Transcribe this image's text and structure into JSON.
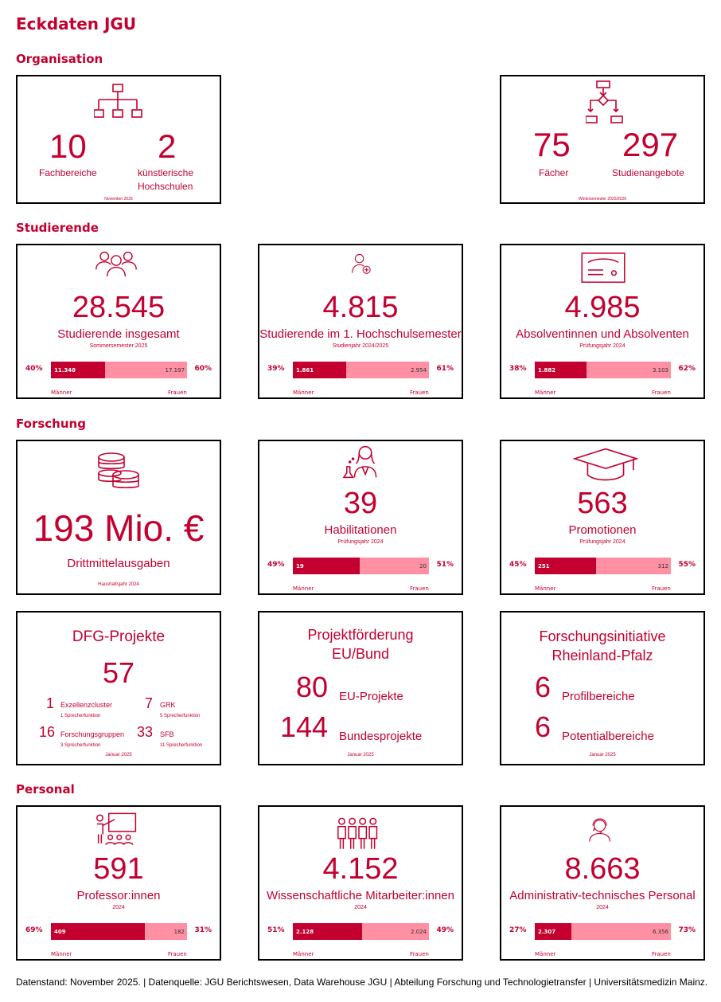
{
  "title": "Eckdaten JGU",
  "sections": {
    "organisation": "Organisation",
    "studierende": "Studierende",
    "forschung": "Forschung",
    "personal": "Personal"
  },
  "org": {
    "card1": {
      "v1": "10",
      "l1": "Fachbereiche",
      "v2": "2",
      "l2a": "künstlerische",
      "l2b": "Hochschulen",
      "date": "November 2025",
      "icon": "org-chart-icon"
    },
    "card2": {
      "v1": "75",
      "l1": "Fächer",
      "v2": "297",
      "l2": "Studienangebote",
      "date": "Wintersemester 2025/2026",
      "icon": "flowchart-icon"
    }
  },
  "gender_cards": [
    {
      "id": "studierende-insgesamt",
      "icon": "group-icon",
      "value": "28.545",
      "label": "Studierende insgesamt",
      "sub": "Sommersemester 2025",
      "men": "11.348",
      "women": "17.197",
      "men_pct": "40%",
      "women_pct": "60%",
      "men_fraction": 0.4
    },
    {
      "id": "erstsemester",
      "icon": "user-add-icon",
      "value": "4.815",
      "label": "Studierende im 1. Hochschulsemester",
      "sub": "Studienjahr 2024/2025",
      "men": "1.861",
      "women": "2.954",
      "men_pct": "39%",
      "women_pct": "61%",
      "men_fraction": 0.39
    },
    {
      "id": "absolventen",
      "icon": "certificate-icon",
      "value": "4.985",
      "label": "Absolventinnen und Absolventen",
      "sub": "Prüfungsjahr 2024",
      "men": "1.882",
      "women": "3.103",
      "men_pct": "38%",
      "women_pct": "62%",
      "men_fraction": 0.38
    },
    {
      "id": "habilitationen",
      "icon": "scientist-icon",
      "value": "39",
      "label": "Habilitationen",
      "sub": "Prüfungsjahr 2024",
      "men": "19",
      "women": "20",
      "men_pct": "49%",
      "women_pct": "51%",
      "men_fraction": 0.49
    },
    {
      "id": "promotionen",
      "icon": "graduation-cap-icon",
      "value": "563",
      "label": "Promotionen",
      "sub": "Prüfungsjahr 2024",
      "men": "251",
      "women": "312",
      "men_pct": "45%",
      "women_pct": "55%",
      "men_fraction": 0.45
    },
    {
      "id": "professoren",
      "icon": "teacher-icon",
      "value": "591",
      "label": "Professor:innen",
      "sub": "2024",
      "men": "409",
      "women": "182",
      "men_pct": "69%",
      "women_pct": "31%",
      "men_fraction": 0.69
    },
    {
      "id": "wiss-mitarbeiter",
      "icon": "staff-group-icon",
      "value": "4.152",
      "label": "Wissenschaftliche Mitarbeiter:innen",
      "sub": "2024",
      "men": "2.128",
      "women": "2.024",
      "men_pct": "51%",
      "women_pct": "49%",
      "men_fraction": 0.51
    },
    {
      "id": "admin-personal",
      "icon": "headset-icon",
      "value": "8.663",
      "label": "Administrativ-technisches Personal",
      "sub": "2024",
      "men": "2.307",
      "women": "6.356",
      "men_pct": "27%",
      "women_pct": "73%",
      "men_fraction": 0.27
    }
  ],
  "gender_labels": {
    "men": "Männer",
    "women": "Frauen"
  },
  "drittmittel": {
    "value": "193 Mio. €",
    "label": "Drittmittelausgaben",
    "sub": "Haushaltsjahr 2024"
  },
  "dfg": {
    "title": "DFG-Projekte",
    "value": "57",
    "items": [
      {
        "n": "1",
        "label": "Exzellenzcluster",
        "sub": "1 Sprecherfunktion"
      },
      {
        "n": "7",
        "label": "GRK",
        "sub": "5 Sprecherfunktion"
      },
      {
        "n": "16",
        "label": "Forschungsgruppen",
        "sub": "3 Sprecherfunktion"
      },
      {
        "n": "33",
        "label": "SFB",
        "sub": "11 Sprecherfunktion"
      }
    ],
    "date": "Januar 2025"
  },
  "eubund": {
    "title1": "Projektförderung",
    "title2": "EU/Bund",
    "n1": "80",
    "l1": "EU-Projekte",
    "n2": "144",
    "l2": "Bundesprojekte",
    "date": "Januar 2025"
  },
  "rlp": {
    "title1": "Forschungsinitiative",
    "title2": "Rheinland-Pfalz",
    "n1": "6",
    "l1": "Profilbereiche",
    "n2": "6",
    "l2": "Potentialbereiche",
    "date": "Januar 2025"
  },
  "footer": "Datenstand: November 2025. | Datenquelle: JGU Berichtswesen, Data Warehouse JGU | Abteilung Forschung und Technologietransfer | Universitätsmedizin Mainz.",
  "colors": {
    "primary": "#c3002f",
    "women_bar": "#ff8fa3"
  }
}
